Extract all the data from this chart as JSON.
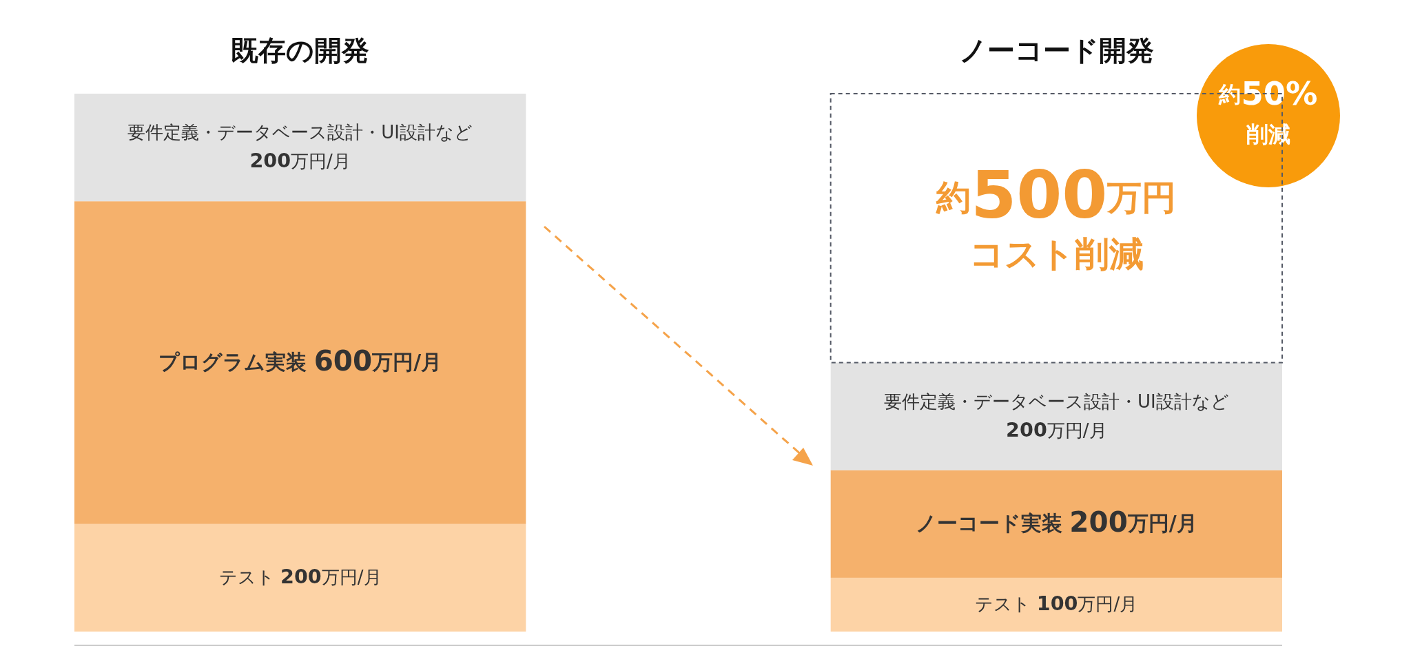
{
  "chart_data": {
    "type": "bar",
    "stacked": true,
    "categories": [
      "既存の開発",
      "ノーコード開発"
    ],
    "series": [
      {
        "color": "#fdd3a6",
        "values": [
          200,
          100
        ],
        "value_labels": [
          "テスト 200万円/月",
          "テスト 100万円/月"
        ]
      },
      {
        "color": "#f5b16c",
        "values": [
          600,
          200
        ],
        "value_labels": [
          "プログラム実装 600万円/月",
          "ノーコード実装 200万円/月"
        ]
      },
      {
        "color": "#e3e3e3",
        "values": [
          200,
          200
        ],
        "value_labels": [
          "要件定義・データベース設計・UI設計など\n200万円/月",
          "要件定義・データベース設計・UI設計など\n200万円/月"
        ]
      },
      {
        "color": "#555a66",
        "line_style": "dashed",
        "values": [
          null,
          500
        ],
        "value_labels": [
          null,
          "約500万円コスト削減"
        ]
      }
    ],
    "annotations": [
      "約50%\n削減"
    ]
  }
}
